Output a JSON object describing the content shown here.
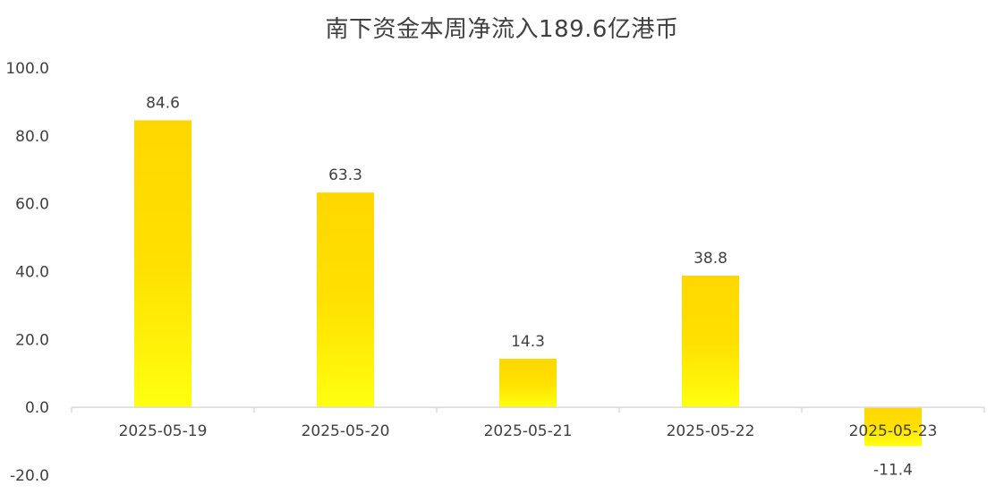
{
  "chart_data": {
    "type": "bar",
    "title": "南下资金本周净流入189.6亿港币",
    "categories": [
      "2025-05-19",
      "2025-05-20",
      "2025-05-21",
      "2025-05-22",
      "2025-05-23"
    ],
    "values": [
      84.6,
      63.3,
      14.3,
      38.8,
      -11.4
    ],
    "data_labels": [
      "84.6",
      "63.3",
      "14.3",
      "38.8",
      "-11.4"
    ],
    "yticks": [
      -20.0,
      0.0,
      20.0,
      40.0,
      60.0,
      80.0,
      100.0
    ],
    "ytick_labels": [
      "-20.0",
      "0.0",
      "20.0",
      "40.0",
      "60.0",
      "80.0",
      "100.0"
    ],
    "ylim": [
      -20,
      100
    ],
    "xlabel": "",
    "ylabel": "",
    "grid": false,
    "legend": "none",
    "colors": {
      "bar_top": "#FFD700",
      "bar_mid": "#FFE000",
      "bar_bottom": "#FFFF10",
      "axis": "#d9d9d9",
      "text": "#404040"
    }
  }
}
